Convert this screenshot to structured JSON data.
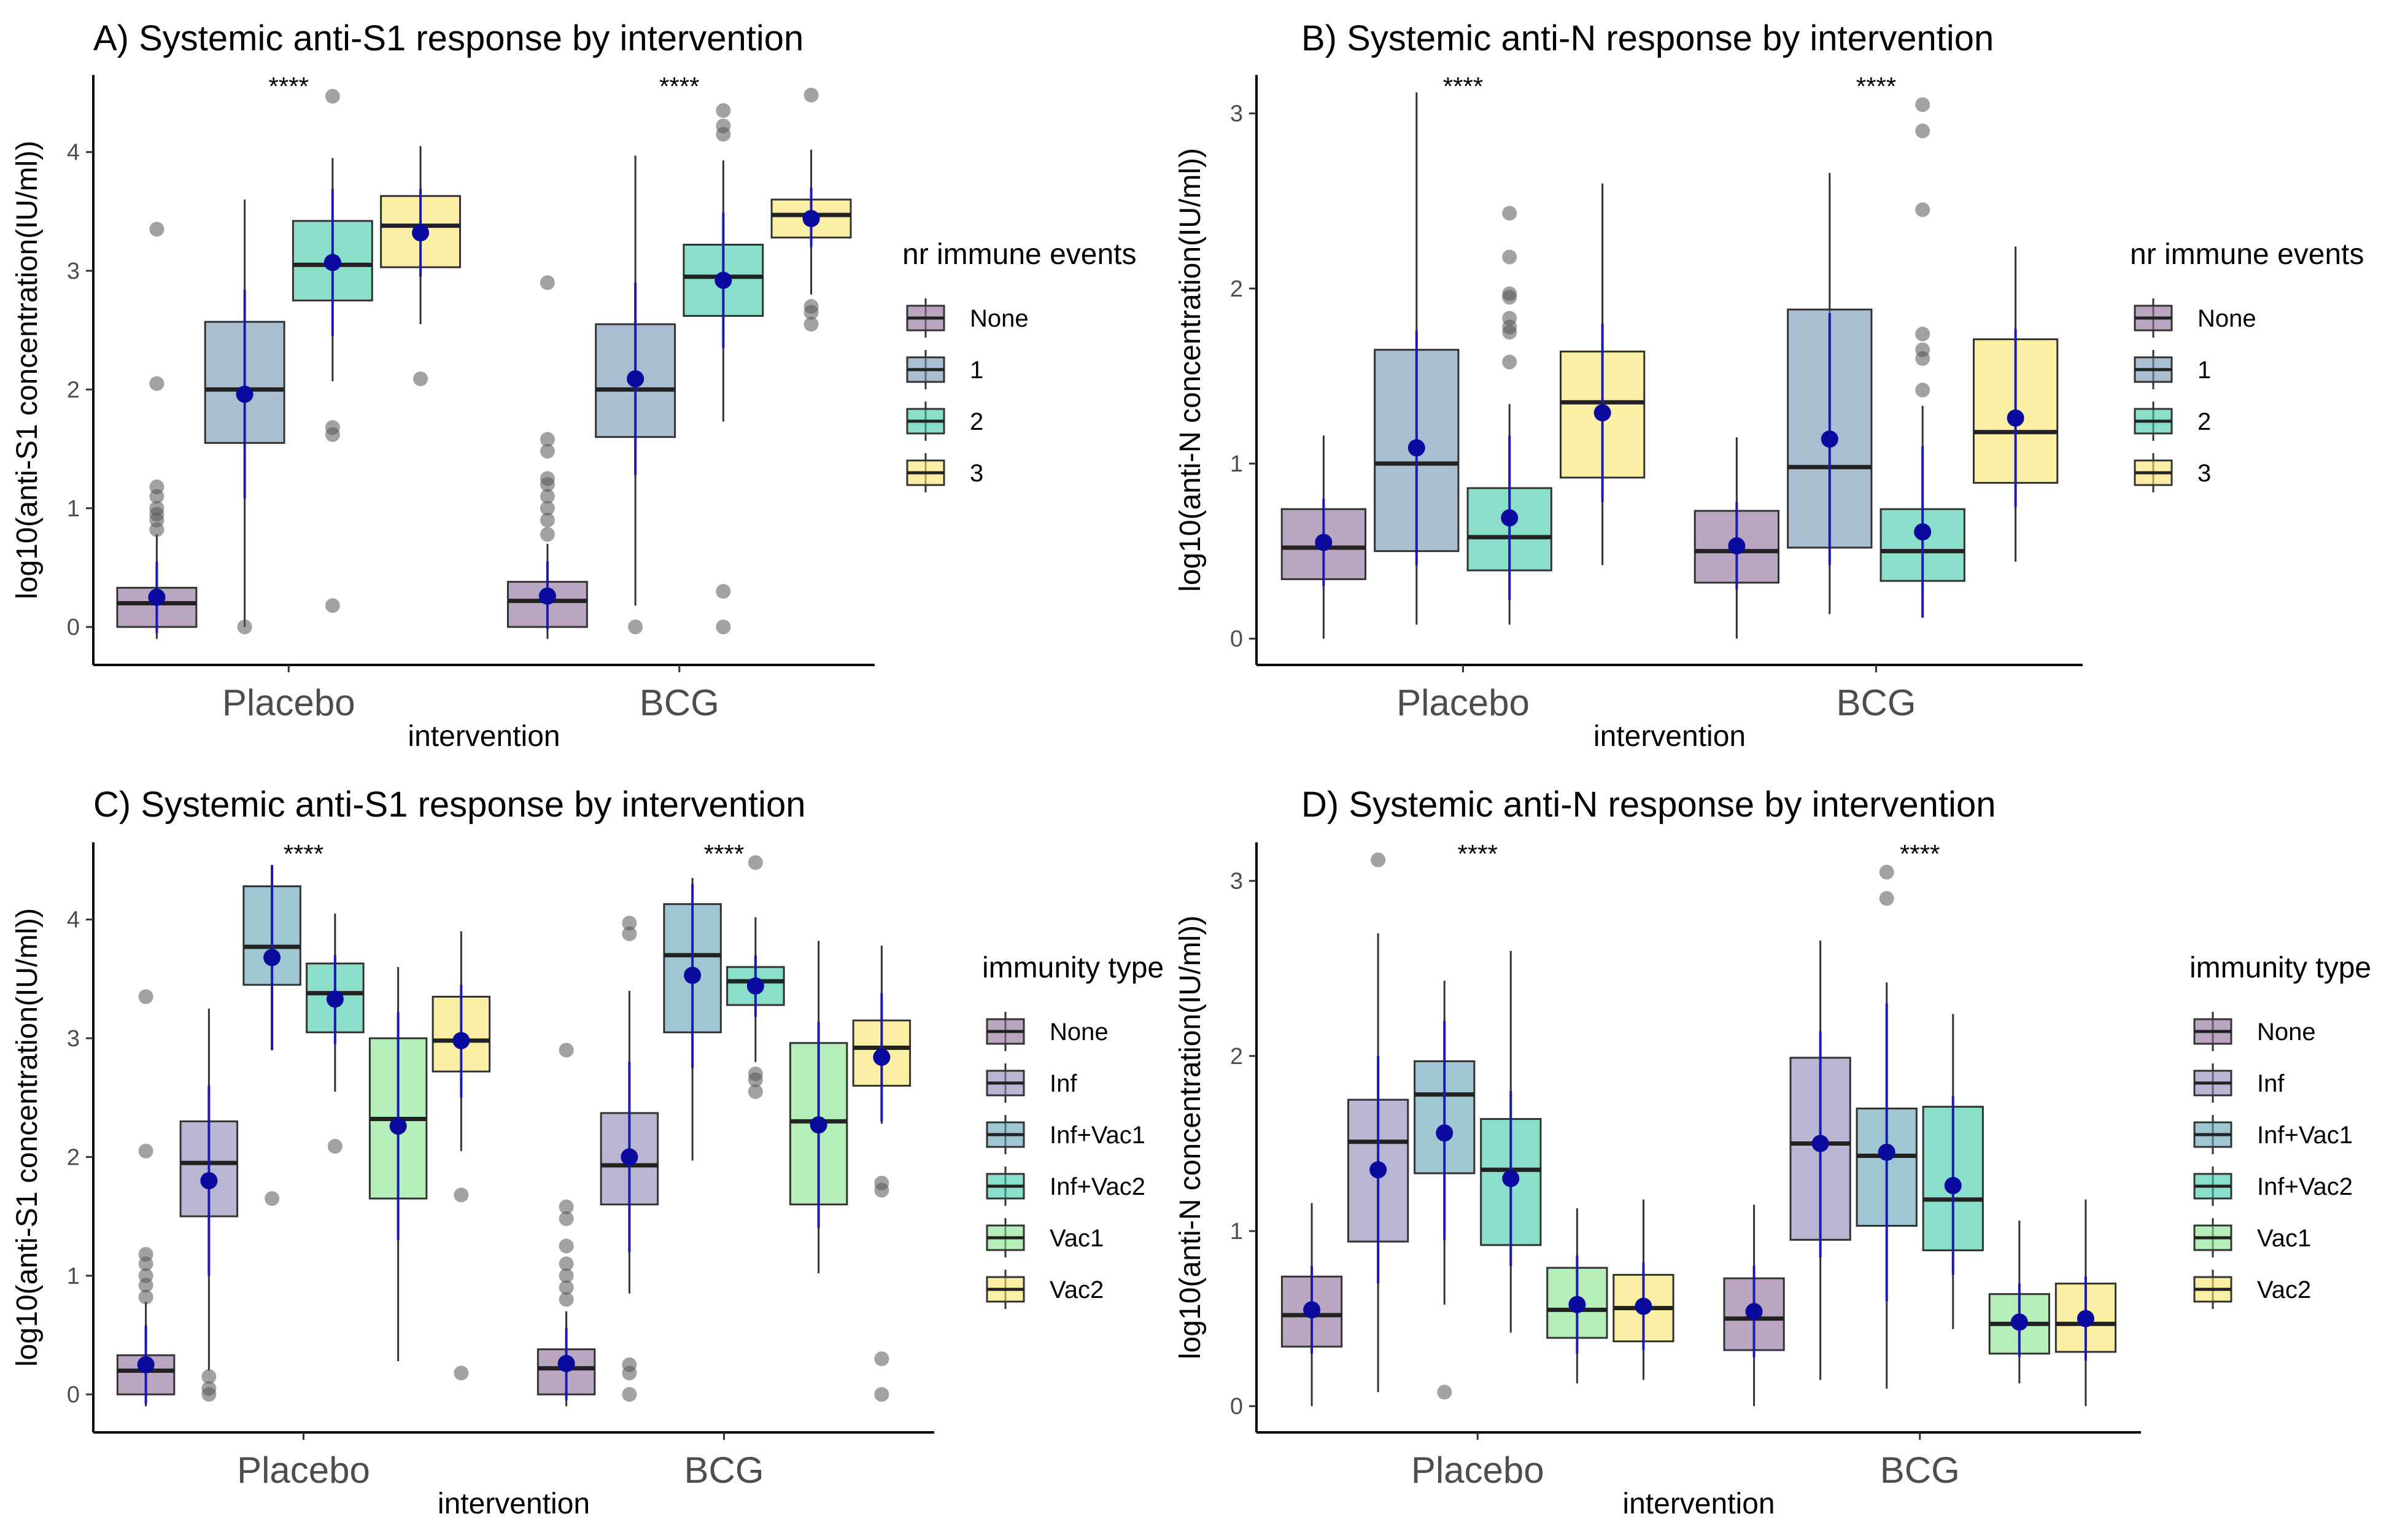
{
  "chart_data": [
    {
      "type": "box",
      "title": "A) Systemic anti-S1 response by intervention",
      "xlabel": "intervention",
      "ylabel": "log10(anti-S1 concentration(IU/ml))",
      "ylim": [
        -0.32,
        4.65
      ],
      "yticks": [
        0,
        1,
        2,
        3,
        4
      ],
      "categories": [
        "Placebo",
        "BCG"
      ],
      "significance": [
        "****",
        "****"
      ],
      "legend_title": "nr immune events",
      "groups": [
        {
          "name": "None",
          "color": "#8e6a97"
        },
        {
          "name": "1",
          "color": "#6f94b2"
        },
        {
          "name": "2",
          "color": "#3bc9a6"
        },
        {
          "name": "3",
          "color": "#f9e46a"
        }
      ],
      "boxes": [
        [
          {
            "q1": 0.0,
            "median": 0.2,
            "q3": 0.33,
            "lo": -0.1,
            "hi": 0.78,
            "mean": 0.25,
            "sdlo": -0.05,
            "sdhi": 0.55,
            "outliers": [
              0.82,
              0.9,
              0.95,
              1.0,
              1.1,
              1.18,
              2.05,
              3.35
            ]
          },
          {
            "q1": 1.55,
            "median": 2.0,
            "q3": 2.57,
            "lo": 0.0,
            "hi": 3.6,
            "mean": 1.96,
            "sdlo": 1.08,
            "sdhi": 2.84,
            "outliers": [
              0.0
            ]
          },
          {
            "q1": 2.75,
            "median": 3.05,
            "q3": 3.42,
            "lo": 2.07,
            "hi": 3.95,
            "mean": 3.07,
            "sdlo": 2.45,
            "sdhi": 3.69,
            "outliers": [
              0.18,
              1.62,
              1.68,
              4.47
            ]
          },
          {
            "q1": 3.03,
            "median": 3.38,
            "q3": 3.63,
            "lo": 2.55,
            "hi": 4.05,
            "mean": 3.32,
            "sdlo": 2.95,
            "sdhi": 3.69,
            "outliers": [
              2.09
            ]
          }
        ],
        [
          {
            "q1": 0.0,
            "median": 0.22,
            "q3": 0.38,
            "lo": -0.1,
            "hi": 0.7,
            "mean": 0.26,
            "sdlo": -0.02,
            "sdhi": 0.55,
            "outliers": [
              0.78,
              0.9,
              1.0,
              1.1,
              1.2,
              1.25,
              1.48,
              1.58,
              2.9
            ]
          },
          {
            "q1": 1.6,
            "median": 2.0,
            "q3": 2.55,
            "lo": 0.18,
            "hi": 3.97,
            "mean": 2.09,
            "sdlo": 1.28,
            "sdhi": 2.9,
            "outliers": [
              0.0
            ]
          },
          {
            "q1": 2.62,
            "median": 2.95,
            "q3": 3.22,
            "lo": 1.73,
            "hi": 3.93,
            "mean": 2.92,
            "sdlo": 2.35,
            "sdhi": 3.49,
            "outliers": [
              0.0,
              0.3,
              4.15,
              4.22,
              4.35
            ]
          },
          {
            "q1": 3.28,
            "median": 3.47,
            "q3": 3.6,
            "lo": 2.8,
            "hi": 4.02,
            "mean": 3.44,
            "sdlo": 3.2,
            "sdhi": 3.7,
            "outliers": [
              2.55,
              2.65,
              2.7,
              4.48
            ]
          }
        ]
      ]
    },
    {
      "type": "box",
      "title": "B) Systemic anti-N response by intervention",
      "xlabel": "intervention",
      "ylabel": "log10(anti-N concentration(IU/ml))",
      "ylim": [
        -0.15,
        3.22
      ],
      "yticks": [
        0,
        1,
        2,
        3
      ],
      "categories": [
        "Placebo",
        "BCG"
      ],
      "significance": [
        "****",
        "****"
      ],
      "legend_title": "nr immune events",
      "groups": [
        {
          "name": "None",
          "color": "#8e6a97"
        },
        {
          "name": "1",
          "color": "#6f94b2"
        },
        {
          "name": "2",
          "color": "#3bc9a6"
        },
        {
          "name": "3",
          "color": "#f9e46a"
        }
      ],
      "boxes": [
        [
          {
            "q1": 0.34,
            "median": 0.52,
            "q3": 0.74,
            "lo": 0.0,
            "hi": 1.16,
            "mean": 0.55,
            "sdlo": 0.3,
            "sdhi": 0.8,
            "outliers": []
          },
          {
            "q1": 0.5,
            "median": 1.0,
            "q3": 1.65,
            "lo": 0.08,
            "hi": 3.12,
            "mean": 1.09,
            "sdlo": 0.42,
            "sdhi": 1.76,
            "outliers": []
          },
          {
            "q1": 0.39,
            "median": 0.58,
            "q3": 0.86,
            "lo": 0.08,
            "hi": 1.34,
            "mean": 0.69,
            "sdlo": 0.22,
            "sdhi": 1.16,
            "outliers": [
              1.58,
              1.75,
              1.78,
              1.83,
              1.95,
              1.97,
              2.18,
              2.43
            ]
          },
          {
            "q1": 0.92,
            "median": 1.35,
            "q3": 1.64,
            "lo": 0.42,
            "hi": 2.6,
            "mean": 1.29,
            "sdlo": 0.78,
            "sdhi": 1.8,
            "outliers": []
          }
        ],
        [
          {
            "q1": 0.32,
            "median": 0.5,
            "q3": 0.73,
            "lo": 0.0,
            "hi": 1.15,
            "mean": 0.53,
            "sdlo": 0.28,
            "sdhi": 0.78,
            "outliers": []
          },
          {
            "q1": 0.52,
            "median": 0.98,
            "q3": 1.88,
            "lo": 0.14,
            "hi": 2.66,
            "mean": 1.14,
            "sdlo": 0.42,
            "sdhi": 1.86,
            "outliers": []
          },
          {
            "q1": 0.33,
            "median": 0.5,
            "q3": 0.74,
            "lo": 0.13,
            "hi": 1.33,
            "mean": 0.61,
            "sdlo": 0.12,
            "sdhi": 1.1,
            "outliers": [
              1.42,
              1.6,
              1.65,
              1.74,
              2.45,
              2.9,
              3.05
            ]
          },
          {
            "q1": 0.89,
            "median": 1.18,
            "q3": 1.71,
            "lo": 0.44,
            "hi": 2.24,
            "mean": 1.26,
            "sdlo": 0.75,
            "sdhi": 1.77,
            "outliers": []
          }
        ]
      ]
    },
    {
      "type": "box",
      "title": "C) Systemic anti-S1 response by intervention",
      "xlabel": "intervention",
      "ylabel": "log10(anti-S1 concentration(IU/ml))",
      "ylim": [
        -0.32,
        4.65
      ],
      "yticks": [
        0,
        1,
        2,
        3,
        4
      ],
      "categories": [
        "Placebo",
        "BCG"
      ],
      "significance": [
        "****",
        "****"
      ],
      "legend_title": "immunity type",
      "groups": [
        {
          "name": "None",
          "color": "#8e6a97"
        },
        {
          "name": "Inf",
          "color": "#8985b5"
        },
        {
          "name": "Inf+Vac1",
          "color": "#5fa0b6"
        },
        {
          "name": "Inf+Vac2",
          "color": "#3bc9a6"
        },
        {
          "name": "Vac1",
          "color": "#86e38a"
        },
        {
          "name": "Vac2",
          "color": "#f9e46a"
        }
      ],
      "boxes": [
        [
          {
            "q1": 0.0,
            "median": 0.2,
            "q3": 0.33,
            "lo": -0.1,
            "hi": 0.78,
            "mean": 0.25,
            "sdlo": -0.08,
            "sdhi": 0.58,
            "outliers": [
              0.82,
              0.92,
              1.0,
              1.1,
              1.18,
              2.05,
              3.35
            ]
          },
          {
            "q1": 1.5,
            "median": 1.95,
            "q3": 2.3,
            "lo": 0.2,
            "hi": 3.25,
            "mean": 1.8,
            "sdlo": 1.0,
            "sdhi": 2.6,
            "outliers": [
              0.0,
              0.05,
              0.15
            ]
          },
          {
            "q1": 3.45,
            "median": 3.77,
            "q3": 4.28,
            "lo": 2.9,
            "hi": 4.45,
            "mean": 3.68,
            "sdlo": 2.9,
            "sdhi": 4.46,
            "outliers": [
              1.65
            ]
          },
          {
            "q1": 3.05,
            "median": 3.38,
            "q3": 3.63,
            "lo": 2.55,
            "hi": 4.05,
            "mean": 3.33,
            "sdlo": 2.95,
            "sdhi": 3.7,
            "outliers": [
              2.09
            ]
          },
          {
            "q1": 1.65,
            "median": 2.32,
            "q3": 3.0,
            "lo": 0.28,
            "hi": 3.6,
            "mean": 2.26,
            "sdlo": 1.3,
            "sdhi": 3.22,
            "outliers": []
          },
          {
            "q1": 2.72,
            "median": 2.98,
            "q3": 3.35,
            "lo": 2.05,
            "hi": 3.9,
            "mean": 2.98,
            "sdlo": 2.5,
            "sdhi": 3.45,
            "outliers": [
              0.18,
              1.68
            ]
          }
        ],
        [
          {
            "q1": 0.0,
            "median": 0.22,
            "q3": 0.38,
            "lo": -0.1,
            "hi": 0.7,
            "mean": 0.26,
            "sdlo": -0.05,
            "sdhi": 0.56,
            "outliers": [
              0.8,
              0.9,
              1.0,
              1.1,
              1.25,
              1.48,
              1.58,
              2.9
            ]
          },
          {
            "q1": 1.6,
            "median": 1.93,
            "q3": 2.37,
            "lo": 0.85,
            "hi": 3.4,
            "mean": 2.0,
            "sdlo": 1.2,
            "sdhi": 2.8,
            "outliers": [
              0.0,
              0.18,
              0.25,
              3.88,
              3.97
            ]
          },
          {
            "q1": 3.05,
            "median": 3.7,
            "q3": 4.13,
            "lo": 1.97,
            "hi": 4.35,
            "mean": 3.53,
            "sdlo": 2.75,
            "sdhi": 4.3,
            "outliers": []
          },
          {
            "q1": 3.28,
            "median": 3.48,
            "q3": 3.6,
            "lo": 2.8,
            "hi": 4.02,
            "mean": 3.44,
            "sdlo": 3.18,
            "sdhi": 3.7,
            "outliers": [
              2.55,
              2.65,
              2.7,
              4.48
            ]
          },
          {
            "q1": 1.6,
            "median": 2.3,
            "q3": 2.96,
            "lo": 1.02,
            "hi": 3.82,
            "mean": 2.27,
            "sdlo": 1.4,
            "sdhi": 3.14,
            "outliers": []
          },
          {
            "q1": 2.6,
            "median": 2.92,
            "q3": 3.15,
            "lo": 2.28,
            "hi": 3.78,
            "mean": 2.84,
            "sdlo": 2.3,
            "sdhi": 3.38,
            "outliers": [
              0.0,
              0.3,
              1.72,
              1.78
            ]
          }
        ]
      ]
    },
    {
      "type": "box",
      "title": "D) Systemic anti-N response by intervention",
      "xlabel": "intervention",
      "ylabel": "log10(anti-N concentration(IU/ml))",
      "ylim": [
        -0.15,
        3.22
      ],
      "yticks": [
        0,
        1,
        2,
        3
      ],
      "categories": [
        "Placebo",
        "BCG"
      ],
      "significance": [
        "****",
        "****"
      ],
      "legend_title": "immunity type",
      "groups": [
        {
          "name": "None",
          "color": "#8e6a97"
        },
        {
          "name": "Inf",
          "color": "#8985b5"
        },
        {
          "name": "Inf+Vac1",
          "color": "#5fa0b6"
        },
        {
          "name": "Inf+Vac2",
          "color": "#3bc9a6"
        },
        {
          "name": "Vac1",
          "color": "#86e38a"
        },
        {
          "name": "Vac2",
          "color": "#f9e46a"
        }
      ],
      "boxes": [
        [
          {
            "q1": 0.34,
            "median": 0.52,
            "q3": 0.74,
            "lo": 0.0,
            "hi": 1.16,
            "mean": 0.55,
            "sdlo": 0.3,
            "sdhi": 0.8,
            "outliers": []
          },
          {
            "q1": 0.94,
            "median": 1.51,
            "q3": 1.75,
            "lo": 0.08,
            "hi": 2.7,
            "mean": 1.35,
            "sdlo": 0.7,
            "sdhi": 2.0,
            "outliers": [
              3.12
            ]
          },
          {
            "q1": 1.33,
            "median": 1.78,
            "q3": 1.97,
            "lo": 0.58,
            "hi": 2.43,
            "mean": 1.56,
            "sdlo": 0.95,
            "sdhi": 2.2,
            "outliers": [
              0.08
            ]
          },
          {
            "q1": 0.92,
            "median": 1.35,
            "q3": 1.64,
            "lo": 0.42,
            "hi": 2.6,
            "mean": 1.3,
            "sdlo": 0.8,
            "sdhi": 1.8,
            "outliers": []
          },
          {
            "q1": 0.39,
            "median": 0.55,
            "q3": 0.79,
            "lo": 0.13,
            "hi": 1.13,
            "mean": 0.58,
            "sdlo": 0.3,
            "sdhi": 0.86,
            "outliers": []
          },
          {
            "q1": 0.37,
            "median": 0.56,
            "q3": 0.75,
            "lo": 0.15,
            "hi": 1.18,
            "mean": 0.57,
            "sdlo": 0.32,
            "sdhi": 0.82,
            "outliers": []
          }
        ],
        [
          {
            "q1": 0.32,
            "median": 0.5,
            "q3": 0.73,
            "lo": 0.0,
            "hi": 1.15,
            "mean": 0.54,
            "sdlo": 0.28,
            "sdhi": 0.8,
            "outliers": []
          },
          {
            "q1": 0.95,
            "median": 1.5,
            "q3": 1.99,
            "lo": 0.15,
            "hi": 2.66,
            "mean": 1.5,
            "sdlo": 0.85,
            "sdhi": 2.14,
            "outliers": []
          },
          {
            "q1": 1.03,
            "median": 1.43,
            "q3": 1.7,
            "lo": 0.1,
            "hi": 2.42,
            "mean": 1.45,
            "sdlo": 0.6,
            "sdhi": 2.3,
            "outliers": [
              2.9,
              3.05
            ]
          },
          {
            "q1": 0.89,
            "median": 1.18,
            "q3": 1.71,
            "lo": 0.44,
            "hi": 2.24,
            "mean": 1.26,
            "sdlo": 0.75,
            "sdhi": 1.77,
            "outliers": []
          },
          {
            "q1": 0.3,
            "median": 0.47,
            "q3": 0.64,
            "lo": 0.13,
            "hi": 1.06,
            "mean": 0.48,
            "sdlo": 0.28,
            "sdhi": 0.7,
            "outliers": []
          },
          {
            "q1": 0.31,
            "median": 0.47,
            "q3": 0.7,
            "lo": 0.0,
            "hi": 1.18,
            "mean": 0.5,
            "sdlo": 0.26,
            "sdhi": 0.74,
            "outliers": []
          }
        ]
      ]
    }
  ]
}
